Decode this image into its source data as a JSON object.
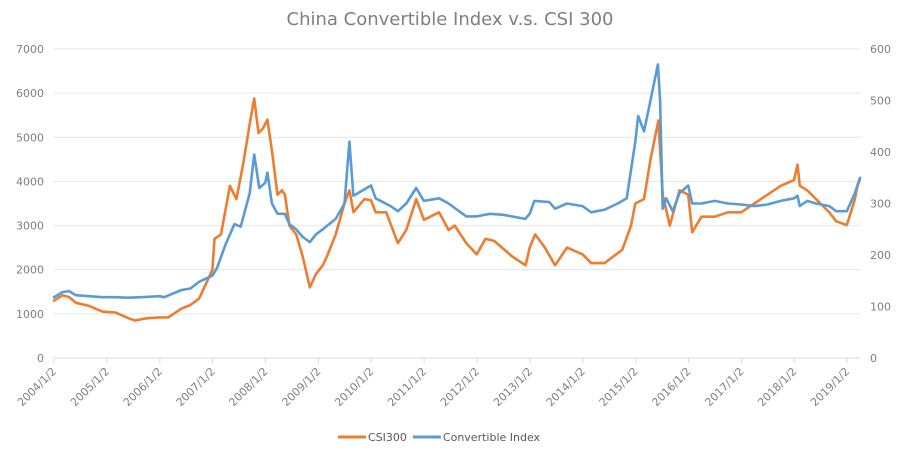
{
  "chart_data": {
    "type": "line",
    "title": "China Convertible Index v.s. CSI 300",
    "x_tick_labels": [
      "2004/1/2",
      "2005/1/2",
      "2006/1/2",
      "2007/1/2",
      "2008/1/2",
      "2009/1/2",
      "2010/1/2",
      "2011/1/2",
      "2012/1/2",
      "2013/1/2",
      "2014/1/2",
      "2015/1/2",
      "2016/1/2",
      "2017/1/2",
      "2018/1/2",
      "2019/1/2"
    ],
    "y_left": {
      "ticks": [
        "0",
        "1000",
        "2000",
        "3000",
        "4000",
        "5000",
        "6000",
        "7000"
      ],
      "range": [
        0,
        7000
      ]
    },
    "y_right": {
      "ticks": [
        "0",
        "100",
        "200",
        "300",
        "400",
        "500",
        "600"
      ],
      "range": [
        0,
        600
      ]
    },
    "grid": true,
    "legend_position": "bottom",
    "series": [
      {
        "name": "CSI300",
        "axis": "left",
        "color": "#ED7D31",
        "points": [
          [
            "2004-01-02",
            1300
          ],
          [
            "2004-03-01",
            1420
          ],
          [
            "2004-04-15",
            1380
          ],
          [
            "2004-06-01",
            1250
          ],
          [
            "2004-09-01",
            1180
          ],
          [
            "2004-12-01",
            1050
          ],
          [
            "2005-03-01",
            1030
          ],
          [
            "2005-06-01",
            900
          ],
          [
            "2005-07-15",
            850
          ],
          [
            "2005-10-01",
            900
          ],
          [
            "2005-12-31",
            920
          ],
          [
            "2006-03-01",
            920
          ],
          [
            "2006-06-01",
            1120
          ],
          [
            "2006-08-01",
            1200
          ],
          [
            "2006-10-01",
            1350
          ],
          [
            "2006-12-31",
            2000
          ],
          [
            "2007-01-15",
            2700
          ],
          [
            "2007-03-01",
            2800
          ],
          [
            "2007-05-01",
            3900
          ],
          [
            "2007-06-15",
            3600
          ],
          [
            "2007-08-01",
            4400
          ],
          [
            "2007-09-15",
            5300
          ],
          [
            "2007-10-16",
            5880
          ],
          [
            "2007-11-15",
            5100
          ],
          [
            "2007-12-15",
            5200
          ],
          [
            "2008-01-15",
            5400
          ],
          [
            "2008-02-15",
            4700
          ],
          [
            "2008-03-25",
            3700
          ],
          [
            "2008-04-25",
            3800
          ],
          [
            "2008-05-15",
            3700
          ],
          [
            "2008-06-15",
            3000
          ],
          [
            "2008-08-01",
            2800
          ],
          [
            "2008-09-15",
            2300
          ],
          [
            "2008-11-04",
            1600
          ],
          [
            "2008-12-15",
            1900
          ],
          [
            "2009-02-01",
            2100
          ],
          [
            "2009-03-01",
            2300
          ],
          [
            "2009-05-01",
            2800
          ],
          [
            "2009-07-01",
            3500
          ],
          [
            "2009-08-04",
            3800
          ],
          [
            "2009-09-01",
            3300
          ],
          [
            "2009-11-15",
            3600
          ],
          [
            "2009-12-31",
            3575
          ],
          [
            "2010-02-01",
            3300
          ],
          [
            "2010-04-15",
            3300
          ],
          [
            "2010-07-05",
            2600
          ],
          [
            "2010-09-01",
            2900
          ],
          [
            "2010-11-08",
            3600
          ],
          [
            "2010-12-31",
            3130
          ],
          [
            "2011-04-15",
            3300
          ],
          [
            "2011-06-20",
            2900
          ],
          [
            "2011-08-01",
            3000
          ],
          [
            "2011-10-20",
            2600
          ],
          [
            "2011-12-31",
            2350
          ],
          [
            "2012-03-01",
            2700
          ],
          [
            "2012-05-01",
            2650
          ],
          [
            "2012-09-01",
            2300
          ],
          [
            "2012-12-03",
            2100
          ],
          [
            "2012-12-31",
            2500
          ],
          [
            "2013-02-07",
            2800
          ],
          [
            "2013-04-15",
            2500
          ],
          [
            "2013-06-25",
            2100
          ],
          [
            "2013-09-15",
            2500
          ],
          [
            "2013-12-31",
            2350
          ],
          [
            "2014-03-01",
            2150
          ],
          [
            "2014-06-01",
            2150
          ],
          [
            "2014-08-01",
            2300
          ],
          [
            "2014-10-01",
            2450
          ],
          [
            "2014-12-01",
            3000
          ],
          [
            "2014-12-31",
            3500
          ],
          [
            "2015-03-01",
            3600
          ],
          [
            "2015-04-15",
            4500
          ],
          [
            "2015-06-08",
            5380
          ],
          [
            "2015-07-08",
            3700
          ],
          [
            "2015-08-26",
            3000
          ],
          [
            "2015-11-01",
            3800
          ],
          [
            "2015-12-31",
            3700
          ],
          [
            "2016-01-28",
            2850
          ],
          [
            "2016-04-01",
            3200
          ],
          [
            "2016-07-01",
            3200
          ],
          [
            "2016-10-01",
            3300
          ],
          [
            "2016-12-31",
            3300
          ],
          [
            "2017-04-01",
            3500
          ],
          [
            "2017-07-01",
            3700
          ],
          [
            "2017-10-01",
            3900
          ],
          [
            "2017-12-31",
            4030
          ],
          [
            "2018-01-24",
            4380
          ],
          [
            "2018-02-09",
            3900
          ],
          [
            "2018-04-01",
            3800
          ],
          [
            "2018-06-01",
            3600
          ],
          [
            "2018-09-01",
            3300
          ],
          [
            "2018-10-18",
            3100
          ],
          [
            "2018-12-31",
            3010
          ],
          [
            "2019-02-25",
            3600
          ],
          [
            "2019-03-15",
            3900
          ],
          [
            "2019-04-01",
            4050
          ]
        ]
      },
      {
        "name": "Convertible Index",
        "axis": "right",
        "color": "#5B9BD5",
        "points": [
          [
            "2004-01-02",
            118
          ],
          [
            "2004-03-01",
            128
          ],
          [
            "2004-04-15",
            130
          ],
          [
            "2004-06-01",
            122
          ],
          [
            "2004-09-01",
            120
          ],
          [
            "2004-12-01",
            118
          ],
          [
            "2005-03-01",
            118
          ],
          [
            "2005-06-01",
            117
          ],
          [
            "2005-09-01",
            118
          ],
          [
            "2005-12-31",
            120
          ],
          [
            "2006-02-01",
            118
          ],
          [
            "2006-06-01",
            132
          ],
          [
            "2006-08-01",
            135
          ],
          [
            "2006-10-01",
            148
          ],
          [
            "2006-12-31",
            160
          ],
          [
            "2007-02-01",
            175
          ],
          [
            "2007-04-01",
            220
          ],
          [
            "2007-06-01",
            260
          ],
          [
            "2007-07-15",
            255
          ],
          [
            "2007-09-15",
            320
          ],
          [
            "2007-10-16",
            395
          ],
          [
            "2007-11-20",
            330
          ],
          [
            "2007-12-31",
            340
          ],
          [
            "2008-01-15",
            360
          ],
          [
            "2008-02-15",
            300
          ],
          [
            "2008-03-25",
            280
          ],
          [
            "2008-05-15",
            280
          ],
          [
            "2008-06-15",
            260
          ],
          [
            "2008-08-01",
            250
          ],
          [
            "2008-09-15",
            235
          ],
          [
            "2008-11-04",
            225
          ],
          [
            "2008-12-15",
            240
          ],
          [
            "2009-02-01",
            250
          ],
          [
            "2009-05-01",
            270
          ],
          [
            "2009-07-01",
            300
          ],
          [
            "2009-08-04",
            420
          ],
          [
            "2009-08-31",
            315
          ],
          [
            "2009-11-01",
            325
          ],
          [
            "2009-12-31",
            335
          ],
          [
            "2010-02-01",
            310
          ],
          [
            "2010-05-15",
            295
          ],
          [
            "2010-07-05",
            285
          ],
          [
            "2010-09-01",
            300
          ],
          [
            "2010-11-08",
            330
          ],
          [
            "2010-12-31",
            305
          ],
          [
            "2011-04-15",
            310
          ],
          [
            "2011-06-20",
            300
          ],
          [
            "2011-10-20",
            275
          ],
          [
            "2011-12-31",
            275
          ],
          [
            "2012-04-01",
            280
          ],
          [
            "2012-07-01",
            278
          ],
          [
            "2012-12-01",
            270
          ],
          [
            "2012-12-31",
            280
          ],
          [
            "2013-02-01",
            305
          ],
          [
            "2013-05-15",
            303
          ],
          [
            "2013-06-25",
            290
          ],
          [
            "2013-09-15",
            300
          ],
          [
            "2013-12-31",
            295
          ],
          [
            "2014-03-01",
            283
          ],
          [
            "2014-06-01",
            288
          ],
          [
            "2014-09-01",
            300
          ],
          [
            "2014-11-01",
            310
          ],
          [
            "2014-12-31",
            420
          ],
          [
            "2015-01-20",
            470
          ],
          [
            "2015-03-01",
            440
          ],
          [
            "2015-04-15",
            500
          ],
          [
            "2015-06-05",
            570
          ],
          [
            "2015-06-20",
            500
          ],
          [
            "2015-07-08",
            290
          ],
          [
            "2015-08-01",
            310
          ],
          [
            "2015-09-15",
            285
          ],
          [
            "2015-11-01",
            320
          ],
          [
            "2015-12-31",
            335
          ],
          [
            "2016-01-28",
            300
          ],
          [
            "2016-04-01",
            300
          ],
          [
            "2016-07-01",
            305
          ],
          [
            "2016-10-01",
            300
          ],
          [
            "2016-12-31",
            298
          ],
          [
            "2017-04-01",
            295
          ],
          [
            "2017-07-01",
            298
          ],
          [
            "2017-10-01",
            305
          ],
          [
            "2017-12-31",
            310
          ],
          [
            "2018-01-24",
            315
          ],
          [
            "2018-02-09",
            295
          ],
          [
            "2018-04-01",
            305
          ],
          [
            "2018-06-01",
            300
          ],
          [
            "2018-09-01",
            295
          ],
          [
            "2018-10-18",
            285
          ],
          [
            "2018-12-31",
            285
          ],
          [
            "2019-02-25",
            320
          ],
          [
            "2019-04-01",
            350
          ]
        ]
      }
    ]
  }
}
